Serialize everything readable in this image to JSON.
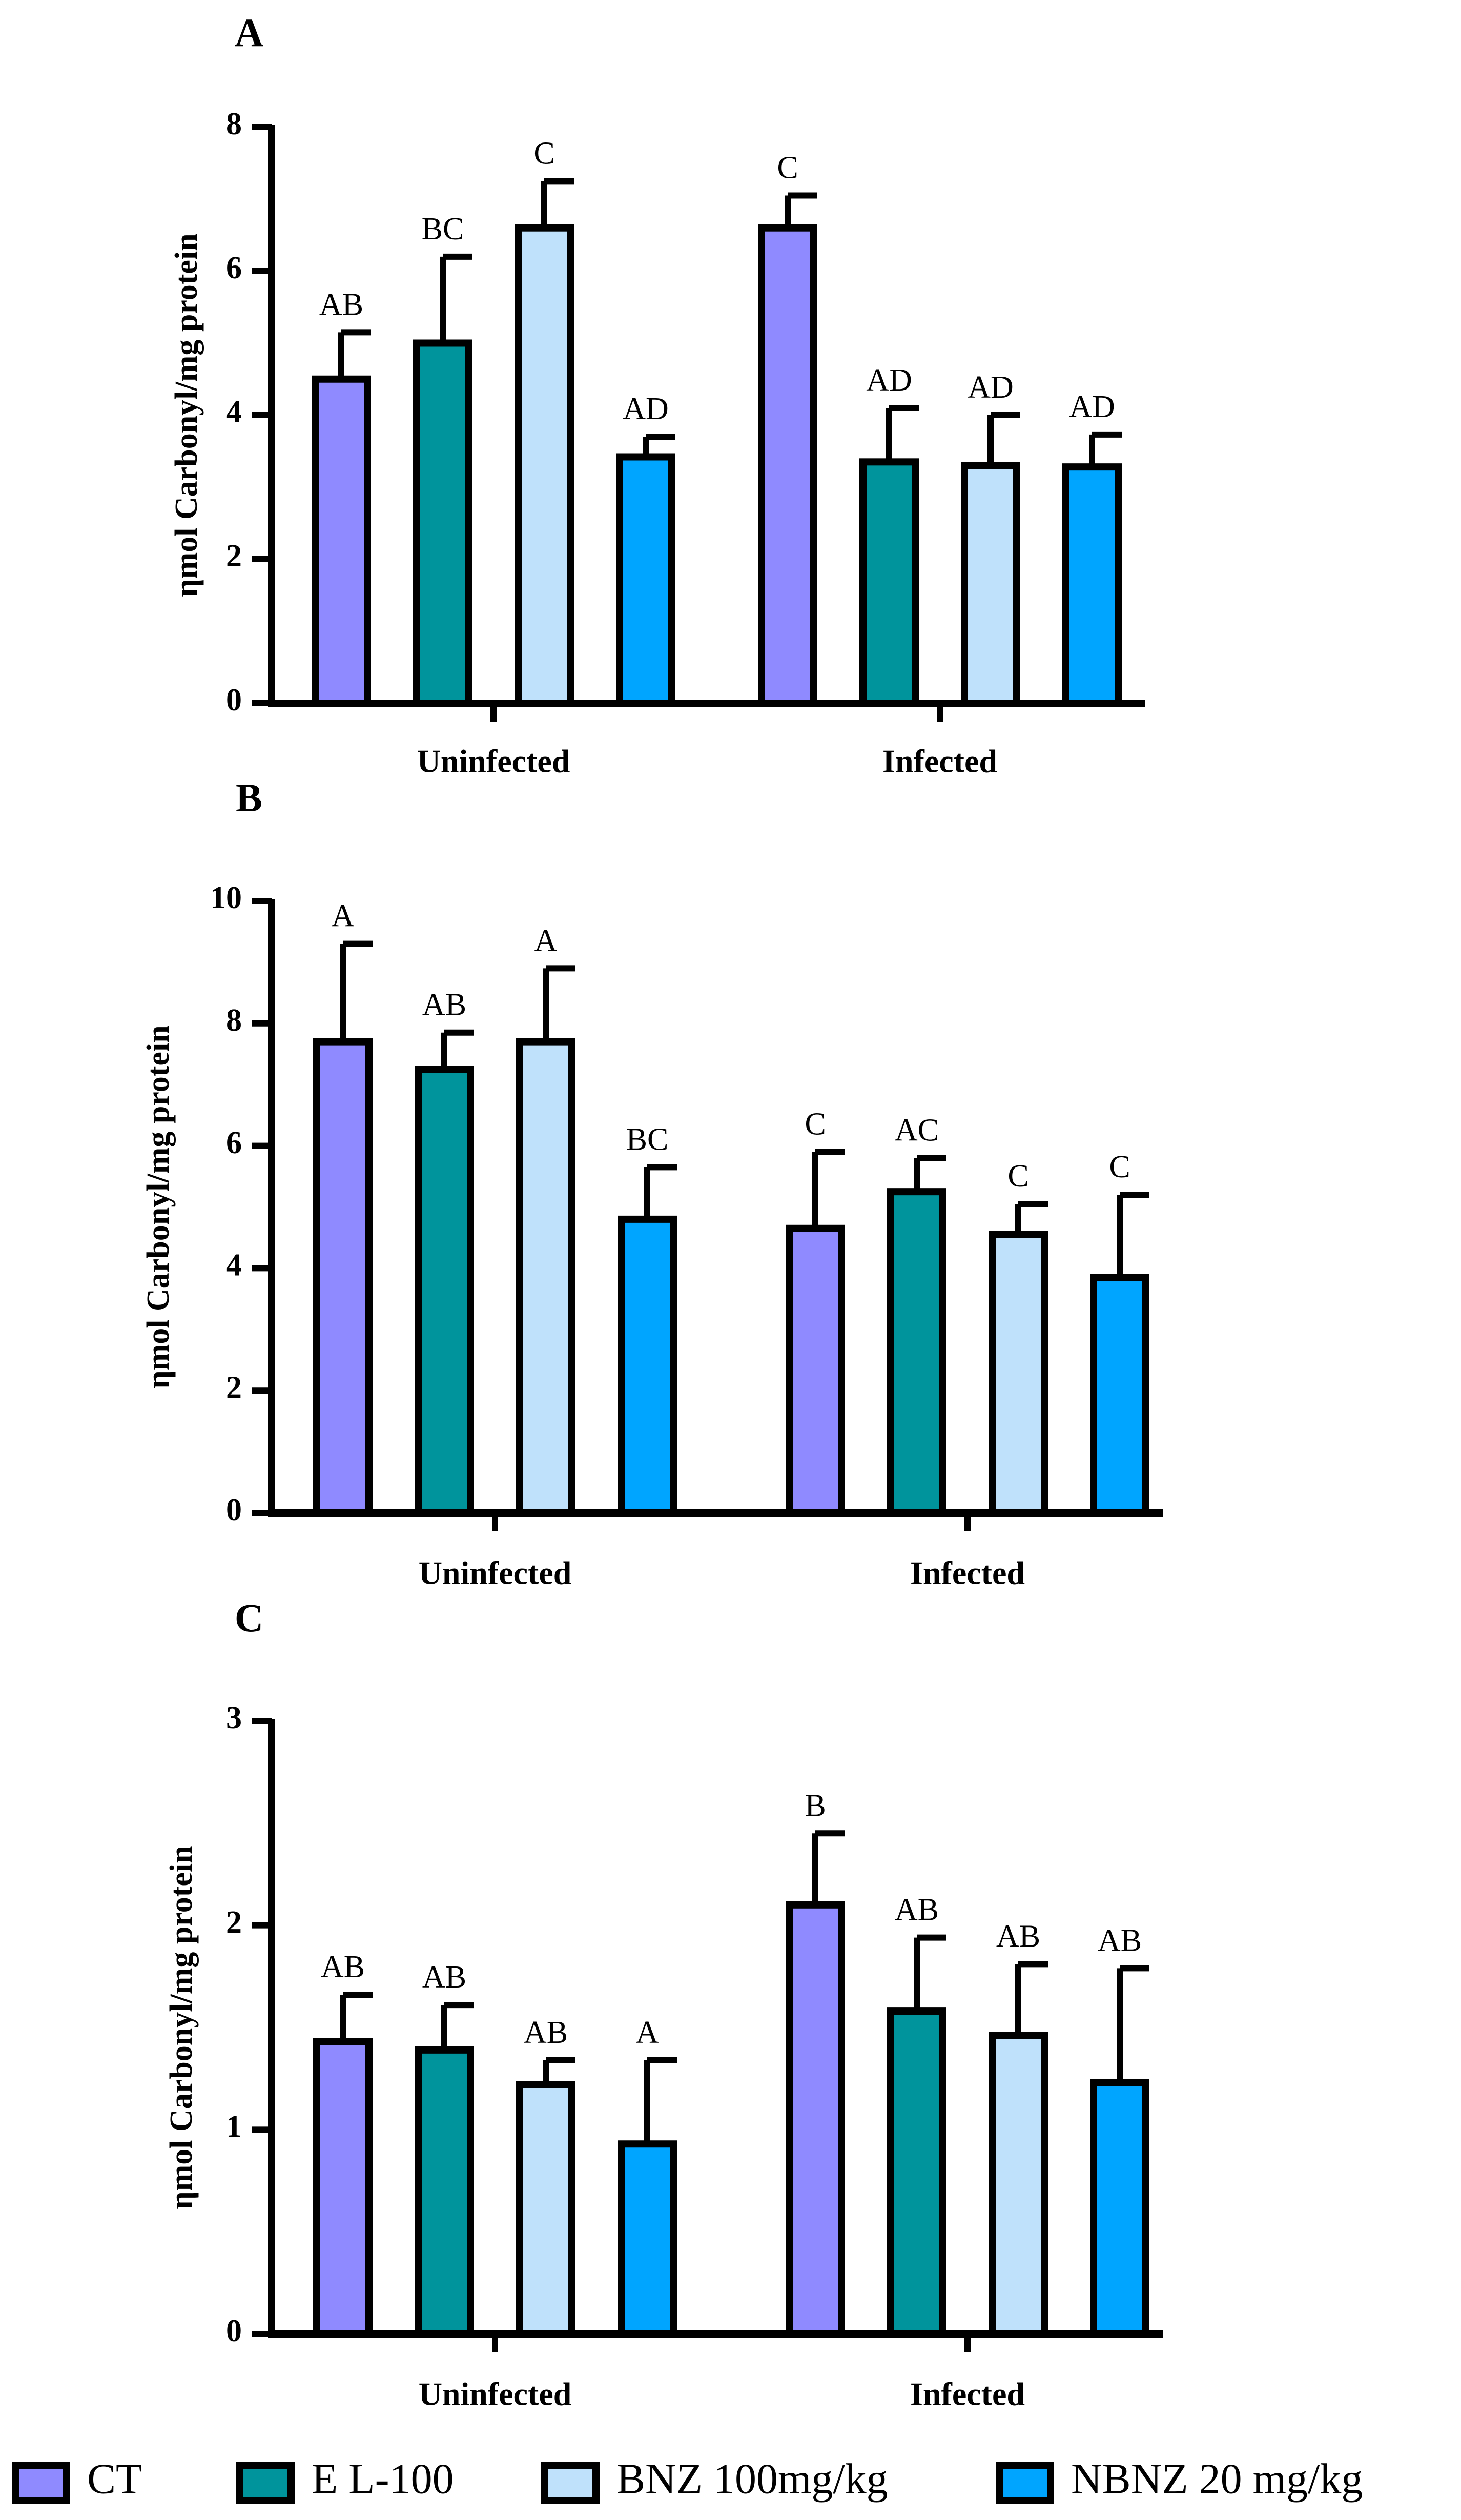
{
  "figure": {
    "legend": [
      {
        "name": "CT",
        "color": "#8f8aff"
      },
      {
        "name": "E L-100",
        "color": "#00949c"
      },
      {
        "name": "BNZ 100mg/kg",
        "color": "#bfe1fb"
      },
      {
        "name": "NBNZ 20 mg/kg",
        "color": "#00a5ff"
      }
    ]
  },
  "chart_data": [
    {
      "type": "bar",
      "panel_label": "A",
      "title": "",
      "ylabel": "ηmol Carbonyl/mg protein",
      "xlabel": "",
      "ylim": [
        0,
        8
      ],
      "yticks": [
        "0",
        "2",
        "4",
        "6",
        "8"
      ],
      "categories": [
        "Uninfected",
        "Infected"
      ],
      "series": [
        {
          "name": "CT",
          "values": [
            4.5,
            6.6
          ],
          "errors": [
            0.65,
            0.45
          ],
          "labels": [
            "AB",
            "C"
          ]
        },
        {
          "name": "E L-100",
          "values": [
            5.0,
            3.35
          ],
          "errors": [
            1.2,
            0.75
          ],
          "labels": [
            "BC",
            "AD"
          ]
        },
        {
          "name": "BNZ 100mg/kg",
          "values": [
            6.6,
            3.3
          ],
          "errors": [
            0.65,
            0.7
          ],
          "labels": [
            "C",
            "AD"
          ]
        },
        {
          "name": "NBNZ 20 mg/kg",
          "values": [
            3.42,
            3.28
          ],
          "errors": [
            0.28,
            0.45
          ],
          "labels": [
            "AD",
            "AD"
          ]
        }
      ]
    },
    {
      "type": "bar",
      "panel_label": "B",
      "title": "",
      "ylabel": "ηmol Carbonyl/mg protein",
      "xlabel": "",
      "ylim": [
        0,
        10
      ],
      "yticks": [
        "0",
        "2",
        "4",
        "6",
        "8",
        "10"
      ],
      "categories": [
        "Uninfected",
        "Infected"
      ],
      "series": [
        {
          "name": "CT",
          "values": [
            7.7,
            4.65
          ],
          "errors": [
            1.6,
            1.25
          ],
          "labels": [
            "A",
            "C"
          ]
        },
        {
          "name": "E L-100",
          "values": [
            7.25,
            5.25
          ],
          "errors": [
            0.6,
            0.55
          ],
          "labels": [
            "AB",
            "AC"
          ]
        },
        {
          "name": "BNZ 100mg/kg",
          "values": [
            7.7,
            4.55
          ],
          "errors": [
            1.2,
            0.5
          ],
          "labels": [
            "A",
            "C"
          ]
        },
        {
          "name": "NBNZ 20 mg/kg",
          "values": [
            4.8,
            3.85
          ],
          "errors": [
            0.85,
            1.35
          ],
          "labels": [
            "BC",
            "C"
          ]
        }
      ]
    },
    {
      "type": "bar",
      "panel_label": "C",
      "title": "",
      "ylabel": "ηmol Carbonyl/mg protein",
      "xlabel": "",
      "ylim": [
        0,
        3
      ],
      "yticks": [
        "0",
        "1",
        "2",
        "3"
      ],
      "categories": [
        "Uninfected",
        "Infected"
      ],
      "series": [
        {
          "name": "CT",
          "values": [
            1.43,
            2.1
          ],
          "errors": [
            0.23,
            0.35
          ],
          "labels": [
            "AB",
            "B"
          ]
        },
        {
          "name": "E L-100",
          "values": [
            1.39,
            1.58
          ],
          "errors": [
            0.22,
            0.36
          ],
          "labels": [
            "AB",
            "AB"
          ]
        },
        {
          "name": "BNZ 100mg/kg",
          "values": [
            1.22,
            1.46
          ],
          "errors": [
            0.12,
            0.35
          ],
          "labels": [
            "AB",
            "AB"
          ]
        },
        {
          "name": "NBNZ 20 mg/kg",
          "values": [
            0.93,
            1.23
          ],
          "errors": [
            0.41,
            0.56
          ],
          "labels": [
            "A",
            "AB"
          ]
        }
      ]
    }
  ]
}
